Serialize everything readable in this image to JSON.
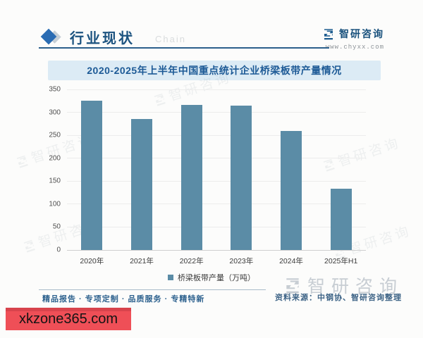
{
  "header": {
    "section_title": "行业现状",
    "faint_text": "Chain",
    "brand_name": "智研咨询",
    "brand_url": "www.chyxx.com"
  },
  "chart_data": {
    "type": "bar",
    "title": "2020-2025年上半年中国重点统计企业桥梁板带产量情况",
    "categories": [
      "2020年",
      "2021年",
      "2022年",
      "2023年",
      "2024年",
      "2025年H1"
    ],
    "values": [
      325,
      285,
      316,
      315,
      260,
      133
    ],
    "series_name": "桥梁板带产量（万吨）",
    "ylim": [
      0,
      350
    ],
    "yticks": [
      0,
      50,
      100,
      150,
      200,
      250,
      300,
      350
    ],
    "grid": true,
    "legend_position": "bottom",
    "bar_color": "#5b8ca6"
  },
  "watermark": {
    "brand_text": "智研咨询"
  },
  "footer": {
    "tagline": "精品报告 · 专项定制 · 品质服务 · 专精特新",
    "source": "资料来源：中钢协、智研咨询整理"
  },
  "overlay_banner": {
    "text": "xkzone365.com",
    "color": "#ef4f57"
  }
}
